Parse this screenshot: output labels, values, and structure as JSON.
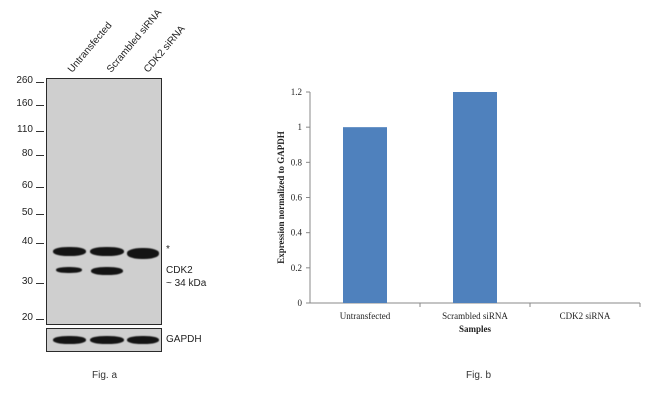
{
  "figure_a": {
    "lanes": [
      "Untransfected",
      "Scrambled siRNA",
      "CDK2 siRNA"
    ],
    "mw_markers": [
      "260",
      "160",
      "110",
      "80",
      "60",
      "50",
      "40",
      "30",
      "20"
    ],
    "asterisk": "*",
    "target_label": "CDK2",
    "target_size": "~ 34 kDa",
    "loading_control": "GAPDH",
    "caption": "Fig. a"
  },
  "figure_b": {
    "caption": "Fig. b"
  },
  "chart_data": {
    "type": "bar",
    "categories": [
      "Untransfected",
      "Scrambled siRNA",
      "CDK2 siRNA"
    ],
    "values": [
      1.0,
      1.2,
      0
    ],
    "xlabel": "Samples",
    "ylabel": "Expression normalized to GAPDH",
    "ylim": [
      0,
      1.2
    ],
    "yticks": [
      "0",
      "0.2",
      "0.4",
      "0.6",
      "0.8",
      "1",
      "1.2"
    ],
    "bar_color": "#4f81bd",
    "grid": false
  }
}
